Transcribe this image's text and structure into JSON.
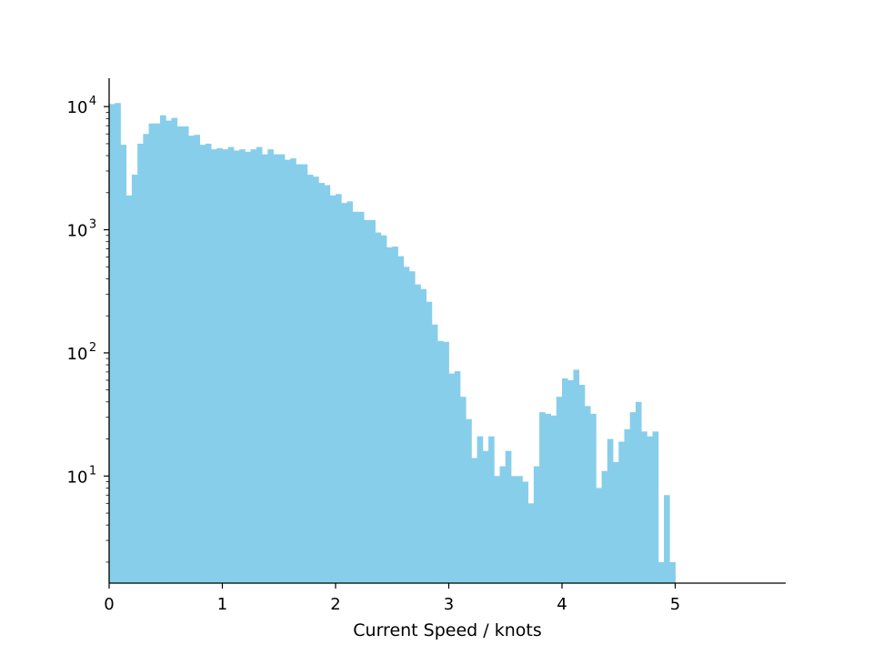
{
  "chart_data": {
    "type": "bar",
    "title": "",
    "xlabel": "Current Speed / knots",
    "ylabel": "",
    "yscale": "log",
    "bar_color": "#87ceeb",
    "grid": false,
    "xlim": [
      0,
      6
    ],
    "ylim": [
      1.35,
      17000
    ],
    "x_ticks": [
      "0",
      "1",
      "2",
      "3",
      "4",
      "5"
    ],
    "x_tick_values": [
      0,
      1,
      2,
      3,
      4,
      5
    ],
    "y_ticks": [
      {
        "value": 10,
        "base": "10",
        "exp": "1"
      },
      {
        "value": 100,
        "base": "10",
        "exp": "2"
      },
      {
        "value": 1000,
        "base": "10",
        "exp": "3"
      },
      {
        "value": 10000,
        "base": "10",
        "exp": "4"
      }
    ],
    "bin_width": 0.05,
    "bin_start": 0,
    "values": [
      10500,
      10700,
      4900,
      1900,
      2800,
      5000,
      6000,
      7300,
      7300,
      8500,
      7700,
      8100,
      6900,
      6900,
      5800,
      5900,
      4900,
      5000,
      4500,
      4600,
      4500,
      4700,
      4400,
      4500,
      4300,
      4500,
      4700,
      4100,
      4500,
      4100,
      4100,
      3700,
      3800,
      3400,
      3400,
      2800,
      2700,
      2400,
      2300,
      1900,
      1950,
      1650,
      1700,
      1400,
      1400,
      1200,
      1200,
      950,
      900,
      720,
      730,
      610,
      500,
      460,
      360,
      330,
      260,
      170,
      125,
      123,
      68,
      71,
      44,
      29,
      14,
      21,
      16,
      21,
      10,
      12,
      16,
      10,
      10,
      9,
      6,
      12,
      33,
      32,
      31,
      44,
      62,
      60,
      73,
      55,
      37,
      32,
      8,
      11,
      20,
      13,
      19,
      24,
      33,
      40,
      23,
      21,
      23,
      2,
      7,
      2
    ]
  }
}
